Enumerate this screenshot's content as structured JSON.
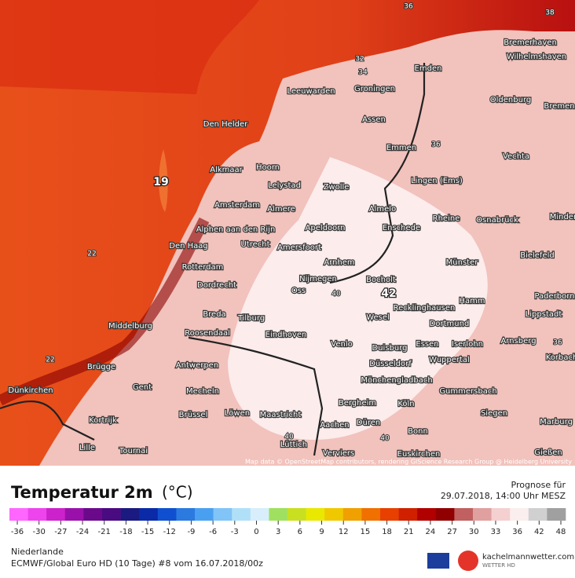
{
  "map": {
    "cities": [
      "Bremerhaven",
      "Wilhelmshaven",
      "Emden",
      "Leeuwarden",
      "Groningen",
      "Oldenburg",
      "Bremen",
      "Den Helder",
      "Assen",
      "Emmen",
      "Vechta",
      "Alkmaar",
      "Hoorn",
      "Lelystad",
      "Zwolle",
      "Lingen (Ems)",
      "Amsterdam",
      "Almere",
      "Almelo",
      "Rheine",
      "Osnabrück",
      "Minden",
      "Alphen aan den Rijn",
      "Apeldoorn",
      "Enschede",
      "Den Haag",
      "Utrecht",
      "Amersfoort",
      "Bielefeld",
      "Münster",
      "Arnhem",
      "Rotterdam",
      "Nijmegen",
      "Bocholt",
      "Dordrecht",
      "Oss",
      "Hamm",
      "Paderborn",
      "Recklinghausen",
      "Lippstadt",
      "Breda",
      "Tilburg",
      "Wesel",
      "Dortmund",
      "Middelburg",
      "Roosendaal",
      "Eindhoven",
      "Venlo",
      "Duisburg",
      "Essen",
      "Iserlohn",
      "Arnsberg",
      "Korbach",
      "Düsseldorf",
      "Wuppertal",
      "Brügge",
      "Antwerpen",
      "Mönchengladbach",
      "Dünkirchen",
      "Gent",
      "Mecheln",
      "Gummersbach",
      "Bergheim",
      "Köln",
      "Siegen",
      "Kortrijk",
      "Brüssel",
      "Löwen",
      "Maastricht",
      "Aachen",
      "Düren",
      "Marburg",
      "Bonn",
      "Lüttich",
      "Lille",
      "Tournai",
      "Verviers",
      "Euskirchen",
      "Gießen"
    ],
    "contour_labels": [
      "19",
      "22",
      "22",
      "36",
      "36",
      "40",
      "42",
      "40",
      "40",
      "34",
      "32",
      "36",
      "38"
    ],
    "attribution": "Map data © OpenStreetMap contributors, rendering GIScience Research Group @ Heidelberg University"
  },
  "legend": {
    "title": "Temperatur 2m",
    "unit": "(°C)",
    "forecast_label": "Prognose für",
    "forecast_time": "29.07.2018, 14:00 Uhr MESZ",
    "ticks": [
      -36,
      -30,
      -27,
      -24,
      -21,
      -18,
      -15,
      -12,
      -9,
      -6,
      -3,
      0,
      3,
      6,
      9,
      12,
      15,
      18,
      21,
      24,
      27,
      30,
      33,
      36,
      42,
      48
    ],
    "colors": [
      "#ff66ff",
      "#ee44ee",
      "#cc22cc",
      "#9911aa",
      "#6a0a8a",
      "#4a0a80",
      "#1a1a80",
      "#0a2aa8",
      "#1050d0",
      "#2a7ae0",
      "#4aa0f0",
      "#80c4f8",
      "#b0e0f8",
      "#d8eefa",
      "#a0e060",
      "#c8e020",
      "#e8e800",
      "#f0c800",
      "#f0a000",
      "#f07000",
      "#e84000",
      "#d02000",
      "#b00000",
      "#900000",
      "#c06060",
      "#e0a0a0",
      "#f4d0d0",
      "#fbeeee",
      "#d0d0d0",
      "#a0a0a0"
    ]
  },
  "footer": {
    "region": "Niederlande",
    "model": "ECMWF/Global Euro HD (10 Tage) #8 vom 16.07.2018/00z",
    "brand": "kachelmannwetter.com",
    "brand_sub": "WETTER HD"
  }
}
